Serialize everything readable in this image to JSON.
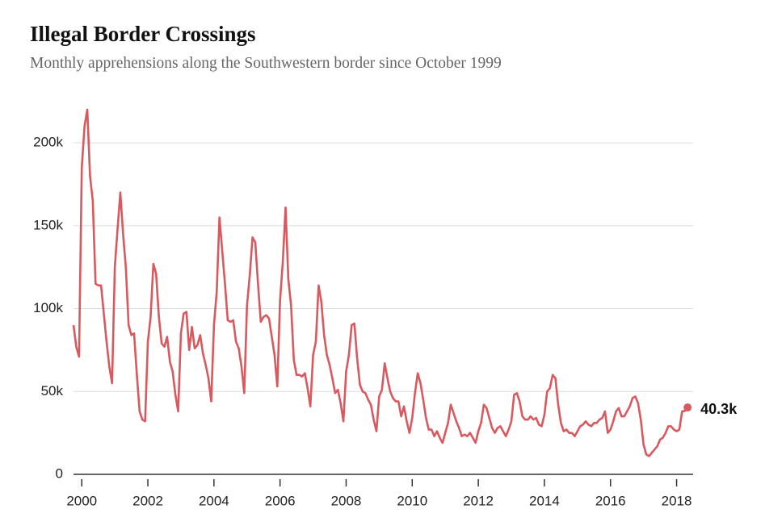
{
  "chart_data": {
    "type": "line",
    "title": "Illegal Border Crossings",
    "subtitle": "Monthly apprehensions along the Southwestern border since October 1999",
    "x": [
      1999.75,
      1999.833,
      1999.917,
      2000,
      2000.083,
      2000.167,
      2000.25,
      2000.333,
      2000.417,
      2000.5,
      2000.583,
      2000.667,
      2000.75,
      2000.833,
      2000.917,
      2001,
      2001.083,
      2001.167,
      2001.25,
      2001.333,
      2001.417,
      2001.5,
      2001.583,
      2001.667,
      2001.75,
      2001.833,
      2001.917,
      2002,
      2002.083,
      2002.167,
      2002.25,
      2002.333,
      2002.417,
      2002.5,
      2002.583,
      2002.667,
      2002.75,
      2002.833,
      2002.917,
      2003,
      2003.083,
      2003.167,
      2003.25,
      2003.333,
      2003.417,
      2003.5,
      2003.583,
      2003.667,
      2003.75,
      2003.833,
      2003.917,
      2004,
      2004.083,
      2004.167,
      2004.25,
      2004.333,
      2004.417,
      2004.5,
      2004.583,
      2004.667,
      2004.75,
      2004.833,
      2004.917,
      2005,
      2005.083,
      2005.167,
      2005.25,
      2005.333,
      2005.417,
      2005.5,
      2005.583,
      2005.667,
      2005.75,
      2005.833,
      2005.917,
      2006,
      2006.083,
      2006.167,
      2006.25,
      2006.333,
      2006.417,
      2006.5,
      2006.583,
      2006.667,
      2006.75,
      2006.833,
      2006.917,
      2007,
      2007.083,
      2007.167,
      2007.25,
      2007.333,
      2007.417,
      2007.5,
      2007.583,
      2007.667,
      2007.75,
      2007.833,
      2007.917,
      2008,
      2008.083,
      2008.167,
      2008.25,
      2008.333,
      2008.417,
      2008.5,
      2008.583,
      2008.667,
      2008.75,
      2008.833,
      2008.917,
      2009,
      2009.083,
      2009.167,
      2009.25,
      2009.333,
      2009.417,
      2009.5,
      2009.583,
      2009.667,
      2009.75,
      2009.833,
      2009.917,
      2010,
      2010.083,
      2010.167,
      2010.25,
      2010.333,
      2010.417,
      2010.5,
      2010.583,
      2010.667,
      2010.75,
      2010.833,
      2010.917,
      2011,
      2011.083,
      2011.167,
      2011.25,
      2011.333,
      2011.417,
      2011.5,
      2011.583,
      2011.667,
      2011.75,
      2011.833,
      2011.917,
      2012,
      2012.083,
      2012.167,
      2012.25,
      2012.333,
      2012.417,
      2012.5,
      2012.583,
      2012.667,
      2012.75,
      2012.833,
      2012.917,
      2013,
      2013.083,
      2013.167,
      2013.25,
      2013.333,
      2013.417,
      2013.5,
      2013.583,
      2013.667,
      2013.75,
      2013.833,
      2013.917,
      2014,
      2014.083,
      2014.167,
      2014.25,
      2014.333,
      2014.417,
      2014.5,
      2014.583,
      2014.667,
      2014.75,
      2014.833,
      2014.917,
      2015,
      2015.083,
      2015.167,
      2015.25,
      2015.333,
      2015.417,
      2015.5,
      2015.583,
      2015.667,
      2015.75,
      2015.833,
      2015.917,
      2016,
      2016.083,
      2016.167,
      2016.25,
      2016.333,
      2016.417,
      2016.5,
      2016.583,
      2016.667,
      2016.75,
      2016.833,
      2016.917,
      2017,
      2017.083,
      2017.167,
      2017.25,
      2017.333,
      2017.417,
      2017.5,
      2017.583,
      2017.667,
      2017.75,
      2017.833,
      2017.917,
      2018,
      2018.083,
      2018.167,
      2018.25,
      2018.333
    ],
    "values": [
      90000,
      77000,
      71000,
      185000,
      210000,
      220000,
      180000,
      165000,
      115000,
      114000,
      114000,
      97000,
      80000,
      65000,
      55000,
      125000,
      148000,
      170000,
      145000,
      125000,
      90000,
      84000,
      85000,
      60000,
      38000,
      33000,
      32000,
      80000,
      95000,
      127000,
      121000,
      95000,
      79000,
      77000,
      83000,
      68000,
      62000,
      48000,
      38000,
      85000,
      97000,
      98000,
      75000,
      89000,
      76000,
      78000,
      84000,
      73000,
      66000,
      58000,
      44000,
      90000,
      110000,
      155000,
      135000,
      115000,
      93000,
      92000,
      93000,
      80000,
      76000,
      65000,
      49000,
      102000,
      120000,
      143000,
      140000,
      115000,
      92000,
      95000,
      96000,
      94000,
      83000,
      72000,
      53000,
      105000,
      128000,
      161000,
      118000,
      102000,
      69000,
      60000,
      60000,
      59000,
      61000,
      52000,
      41000,
      72000,
      80000,
      114000,
      104000,
      84000,
      72000,
      66000,
      58000,
      49000,
      51000,
      43000,
      32000,
      62000,
      72000,
      90000,
      91000,
      70000,
      54000,
      50000,
      49000,
      45000,
      42000,
      33000,
      26000,
      47000,
      51000,
      67000,
      58000,
      50000,
      46000,
      44000,
      44000,
      35000,
      41000,
      32000,
      25000,
      34000,
      49000,
      61000,
      55000,
      45000,
      34000,
      27000,
      27000,
      23000,
      26000,
      22000,
      19000,
      25000,
      31000,
      42000,
      37000,
      32000,
      28000,
      23000,
      24000,
      23000,
      25000,
      22000,
      19000,
      26000,
      31000,
      42000,
      40000,
      34000,
      28000,
      25000,
      28000,
      29000,
      26000,
      23000,
      27000,
      32000,
      48000,
      49000,
      44000,
      35000,
      33000,
      33000,
      35000,
      33000,
      34000,
      30000,
      29000,
      36000,
      50000,
      52000,
      60000,
      58000,
      42000,
      31000,
      26000,
      27000,
      25000,
      25000,
      23000,
      26000,
      29000,
      30000,
      32000,
      30000,
      29000,
      31000,
      31000,
      33000,
      34000,
      38000,
      25000,
      27000,
      32000,
      38000,
      40000,
      35000,
      35000,
      38000,
      41000,
      46000,
      47000,
      43000,
      33000,
      18000,
      12000,
      11000,
      13000,
      15000,
      17000,
      21000,
      22000,
      25000,
      29000,
      29000,
      27000,
      26000,
      27000,
      38000,
      38234,
      40338
    ],
    "value_labels": [
      null,
      null,
      null,
      null,
      null,
      null,
      null,
      null,
      null,
      null,
      null,
      null,
      null,
      null,
      null,
      null,
      null,
      null,
      null,
      null,
      null,
      null,
      null,
      null,
      null,
      null,
      null,
      null,
      null,
      null,
      null,
      null,
      null,
      null,
      null,
      null,
      null,
      null,
      null,
      null,
      null,
      null,
      null,
      null,
      null,
      null,
      null,
      null,
      null,
      null,
      null,
      null,
      null,
      null,
      null,
      null,
      null,
      null,
      null,
      null,
      null,
      null,
      null,
      null,
      null,
      null,
      null,
      null,
      null,
      null,
      null,
      null,
      null,
      null,
      null,
      null,
      null,
      null,
      null,
      null,
      null,
      null,
      null,
      null,
      null,
      null,
      null,
      null,
      null,
      null,
      null,
      null,
      null,
      null,
      null,
      null,
      null,
      null,
      null,
      null,
      null,
      null,
      null,
      null,
      null,
      null,
      null,
      null,
      null,
      null,
      null,
      null,
      null,
      null,
      null,
      null,
      null,
      null,
      null,
      null,
      null,
      null,
      null,
      null,
      null,
      null,
      null,
      null,
      null,
      null,
      null,
      null,
      null,
      null,
      null,
      null,
      null,
      null,
      null,
      null,
      null,
      null,
      null,
      null,
      null,
      null,
      null,
      null,
      null,
      null,
      null,
      null,
      null,
      null,
      null,
      null,
      null,
      null,
      null,
      null,
      null,
      null,
      null,
      null,
      null,
      null,
      null,
      null,
      null,
      null,
      null,
      null,
      null,
      null,
      null,
      null,
      null,
      null,
      null,
      null,
      null,
      null,
      null,
      null,
      null,
      null,
      null,
      null,
      null,
      null,
      null,
      null,
      null,
      null,
      null,
      null,
      null,
      null,
      null,
      null,
      null,
      null,
      null,
      null,
      null,
      null,
      null,
      null,
      null,
      null,
      null,
      null,
      null,
      null,
      null,
      null,
      null,
      null,
      null,
      null,
      null,
      null,
      null,
      "40.3k"
    ],
    "color": "#d9595e",
    "xlim": [
      1999.75,
      2018.5
    ],
    "xticks": [
      2000,
      2002,
      2004,
      2006,
      2008,
      2010,
      2012,
      2014,
      2016,
      2018
    ],
    "ylim": [
      0,
      220000
    ],
    "yticks": [
      0,
      {
        "value": 50000,
        "label": "50k"
      },
      {
        "value": 100000,
        "label": "100k"
      },
      {
        "value": 150000,
        "label": "150k"
      },
      {
        "value": 200000,
        "label": "200k"
      }
    ],
    "grid": true
  }
}
